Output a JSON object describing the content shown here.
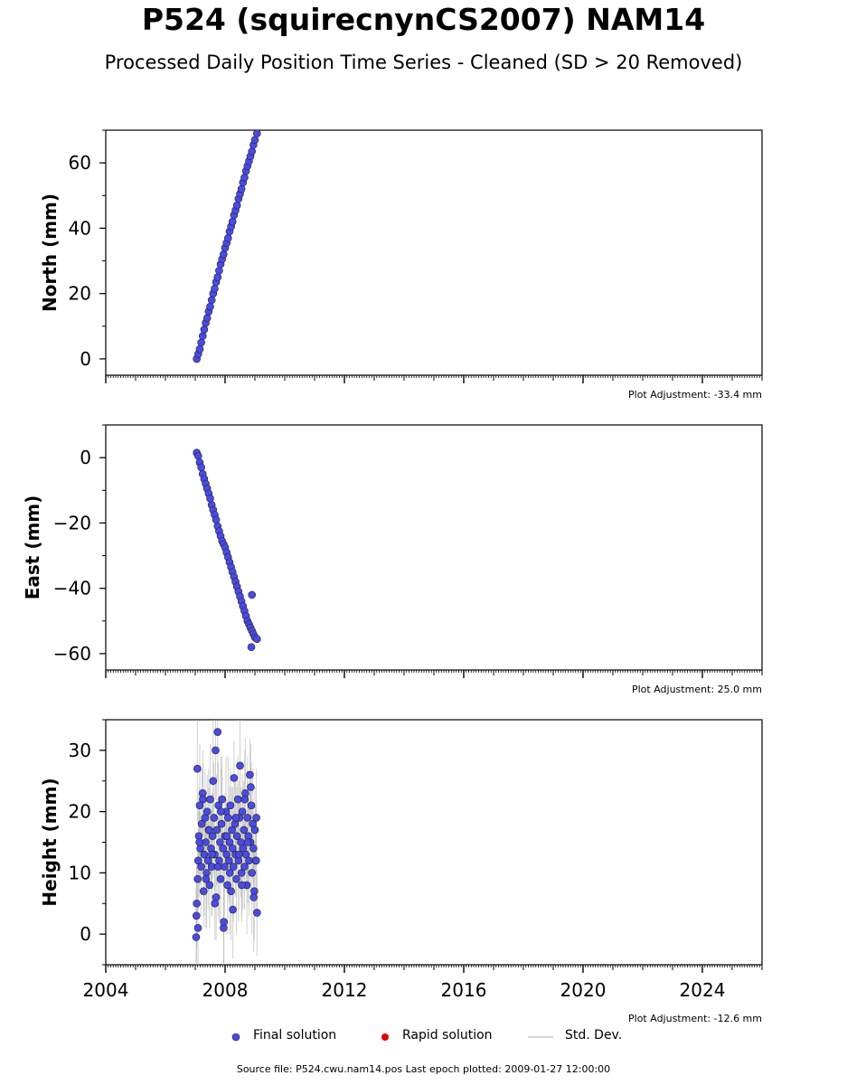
{
  "header": {
    "title": "P524 (squirecnynCS2007) NAM14",
    "subtitle": "Processed Daily Position Time Series - Cleaned (SD > 20 Removed)"
  },
  "colors": {
    "final_solution": "#4a4ae6",
    "rapid_solution": "#e00000",
    "std_dev": "#b0b0b0",
    "marker_edge": "#222222"
  },
  "legend": {
    "final_label": "Final solution",
    "rapid_label": "Rapid solution",
    "std_label": "Std. Dev."
  },
  "footer": {
    "source": "Source file: P524.cwu.nam14.pos  Last epoch plotted: 2009-01-27 12:00:00"
  },
  "chart_data": [
    {
      "type": "scatter",
      "ylabel": "North (mm)",
      "xlim": [
        2004,
        2026
      ],
      "ylim": [
        -5,
        70
      ],
      "yticks": [
        0,
        20,
        40,
        60
      ],
      "ytick_labels": [
        "0",
        "20",
        "40",
        "60"
      ],
      "adjustment": "Plot Adjustment: -33.4 mm",
      "series": [
        {
          "x": [
            2007.05,
            2007.1,
            2007.15,
            2007.2,
            2007.25,
            2007.3,
            2007.35,
            2007.4,
            2007.45,
            2007.5,
            2007.55,
            2007.6,
            2007.65,
            2007.7,
            2007.75,
            2007.8,
            2007.85,
            2007.9,
            2007.95,
            2008.0,
            2008.05,
            2008.1,
            2008.15,
            2008.2,
            2008.25,
            2008.3,
            2008.35,
            2008.4,
            2008.45,
            2008.5,
            2008.55,
            2008.6,
            2008.65,
            2008.7,
            2008.75,
            2008.8,
            2008.85,
            2008.9,
            2008.95,
            2009.0,
            2009.07
          ],
          "y": [
            0,
            1.5,
            3,
            5,
            7,
            9,
            11,
            12.5,
            14.5,
            16,
            18,
            20,
            21.5,
            23.5,
            25,
            27,
            29,
            30.5,
            32,
            34,
            35.5,
            37,
            39,
            40.5,
            42,
            44,
            45.5,
            47,
            49,
            50.5,
            52,
            54,
            55.5,
            57.5,
            59,
            60.5,
            62,
            63.5,
            65.5,
            67,
            69
          ]
        }
      ]
    },
    {
      "type": "scatter",
      "ylabel": "East (mm)",
      "xlim": [
        2004,
        2026
      ],
      "ylim": [
        -65,
        10
      ],
      "yticks": [
        0,
        -20,
        -40,
        -60
      ],
      "ytick_labels": [
        "0",
        "−20",
        "−40",
        "−60"
      ],
      "adjustment": "Plot Adjustment: 25.0 mm",
      "series": [
        {
          "x": [
            2007.05,
            2007.1,
            2007.15,
            2007.2,
            2007.25,
            2007.3,
            2007.35,
            2007.4,
            2007.45,
            2007.5,
            2007.55,
            2007.6,
            2007.65,
            2007.7,
            2007.75,
            2007.8,
            2007.85,
            2007.9,
            2007.95,
            2008.0,
            2008.05,
            2008.1,
            2008.15,
            2008.2,
            2008.25,
            2008.3,
            2008.35,
            2008.4,
            2008.45,
            2008.5,
            2008.55,
            2008.6,
            2008.65,
            2008.7,
            2008.75,
            2008.8,
            2008.85,
            2008.9,
            2008.95,
            2009.0,
            2009.07,
            2008.9,
            2008.88
          ],
          "y": [
            1.5,
            0.5,
            -1.5,
            -3,
            -5,
            -6.5,
            -8,
            -9.5,
            -11,
            -12.5,
            -14.5,
            -16,
            -17.5,
            -19,
            -21,
            -22.5,
            -24,
            -25.5,
            -26.5,
            -27.5,
            -29,
            -30.5,
            -32,
            -33.5,
            -35,
            -36.5,
            -38,
            -39.5,
            -41,
            -42.5,
            -44,
            -45.5,
            -47,
            -48.5,
            -50,
            -51,
            -52,
            -53,
            -54,
            -55,
            -55.5,
            -42,
            -58
          ]
        }
      ]
    },
    {
      "type": "scatter",
      "ylabel": "Height (mm)",
      "xlim": [
        2004,
        2026
      ],
      "ylim": [
        -5,
        35
      ],
      "yticks": [
        0,
        10,
        20,
        30
      ],
      "ytick_labels": [
        "0",
        "10",
        "20",
        "30"
      ],
      "xticks": [
        2004,
        2008,
        2012,
        2016,
        2020,
        2024
      ],
      "xtick_labels": [
        "2004",
        "2008",
        "2012",
        "2016",
        "2020",
        "2024"
      ],
      "adjustment": "Plot Adjustment: -12.6 mm",
      "series": [
        {
          "x": [
            2007.03,
            2007.05,
            2007.07,
            2007.08,
            2007.1,
            2007.12,
            2007.15,
            2007.17,
            2007.2,
            2007.22,
            2007.25,
            2007.28,
            2007.3,
            2007.33,
            2007.35,
            2007.38,
            2007.4,
            2007.43,
            2007.45,
            2007.48,
            2007.5,
            2007.53,
            2007.55,
            2007.58,
            2007.6,
            2007.63,
            2007.65,
            2007.68,
            2007.7,
            2007.72,
            2007.75,
            2007.78,
            2007.8,
            2007.83,
            2007.85,
            2007.88,
            2007.9,
            2007.93,
            2007.95,
            2007.98,
            2008.0,
            2008.03,
            2008.05,
            2008.08,
            2008.1,
            2008.13,
            2008.15,
            2008.18,
            2008.2,
            2008.23,
            2008.25,
            2008.28,
            2008.3,
            2008.33,
            2008.35,
            2008.38,
            2008.4,
            2008.43,
            2008.45,
            2008.48,
            2008.5,
            2008.53,
            2008.55,
            2008.58,
            2008.6,
            2008.63,
            2008.65,
            2008.68,
            2008.7,
            2008.73,
            2008.75,
            2008.78,
            2008.8,
            2008.83,
            2008.85,
            2008.88,
            2008.9,
            2008.93,
            2008.95,
            2008.98,
            2009.0,
            2009.03,
            2009.05,
            2009.07,
            2007.04,
            2007.09,
            2007.14,
            2007.26,
            2007.36,
            2007.46,
            2007.56,
            2007.66,
            2007.76,
            2007.86,
            2007.96,
            2008.06,
            2008.16,
            2008.26,
            2008.36,
            2008.46,
            2008.56,
            2008.66,
            2008.76,
            2008.86,
            2008.96,
            2009.04
          ],
          "y": [
            -0.5,
            5,
            27,
            9,
            12,
            16,
            21,
            14,
            11,
            18,
            23,
            7,
            13,
            19,
            15,
            10,
            20,
            12,
            17,
            8,
            22,
            14,
            11,
            16,
            25,
            19,
            13,
            30,
            6,
            17,
            33,
            21,
            12,
            15,
            9,
            18,
            22,
            14,
            1,
            11,
            16,
            20,
            13,
            8,
            19,
            12,
            15,
            21,
            7,
            17,
            14,
            11,
            25.5,
            18,
            13,
            9,
            16,
            22,
            12,
            19,
            27.5,
            15,
            10,
            20,
            14,
            17,
            11,
            23,
            13,
            8,
            19,
            16,
            12,
            26,
            15,
            21,
            10,
            18,
            14,
            7,
            17,
            12,
            19,
            3.5,
            3,
            1,
            15,
            22,
            9,
            17,
            13,
            5,
            11,
            20,
            2,
            16,
            10,
            4,
            19,
            13,
            8,
            22,
            15,
            24,
            6,
            12
          ],
          "err": [
            8,
            7,
            9,
            6,
            8,
            7,
            10,
            6,
            8,
            9,
            7,
            6,
            10,
            8,
            7,
            9,
            6,
            8,
            10,
            7,
            9,
            6,
            8,
            7,
            10,
            9,
            6,
            8,
            7,
            9,
            8,
            7,
            10,
            6,
            8,
            9,
            7,
            6,
            10,
            8,
            7,
            9,
            6,
            8,
            10,
            7,
            9,
            6,
            8,
            7,
            10,
            9,
            6,
            8,
            7,
            9,
            8,
            7,
            10,
            6,
            8,
            9,
            7,
            6,
            10,
            8,
            7,
            9,
            6,
            8,
            10,
            7,
            9,
            6,
            8,
            7,
            10,
            9,
            6,
            8,
            7,
            9,
            8,
            7,
            8,
            7,
            9,
            6,
            8,
            7,
            10,
            6,
            8,
            9,
            7,
            6,
            10,
            8,
            7,
            9,
            6,
            8,
            10,
            7,
            9,
            6
          ]
        }
      ]
    }
  ]
}
